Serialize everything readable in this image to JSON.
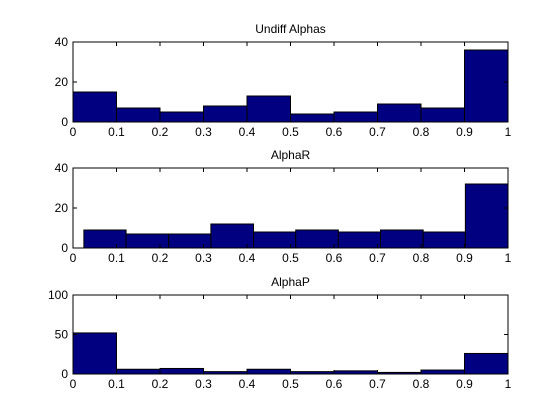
{
  "chart_data": [
    {
      "type": "bar",
      "title": "Undiff Alphas",
      "xlim": [
        0,
        1
      ],
      "ylim": [
        0,
        40
      ],
      "xticks": [
        "0",
        "0.1",
        "0.2",
        "0.3",
        "0.4",
        "0.5",
        "0.6",
        "0.7",
        "0.8",
        "0.9",
        "1"
      ],
      "yticks": [
        "0",
        "20",
        "40"
      ],
      "bar_color": "#000080",
      "bins": [
        {
          "start": 0.0,
          "end": 0.1,
          "value": 15
        },
        {
          "start": 0.1,
          "end": 0.2,
          "value": 7
        },
        {
          "start": 0.2,
          "end": 0.3,
          "value": 5
        },
        {
          "start": 0.3,
          "end": 0.4,
          "value": 8
        },
        {
          "start": 0.4,
          "end": 0.5,
          "value": 13
        },
        {
          "start": 0.5,
          "end": 0.6,
          "value": 4
        },
        {
          "start": 0.6,
          "end": 0.7,
          "value": 5
        },
        {
          "start": 0.7,
          "end": 0.8,
          "value": 9
        },
        {
          "start": 0.8,
          "end": 0.9,
          "value": 7
        },
        {
          "start": 0.9,
          "end": 1.0,
          "value": 36
        }
      ]
    },
    {
      "type": "bar",
      "title": "AlphaR",
      "xlim": [
        0,
        1
      ],
      "ylim": [
        0,
        40
      ],
      "xticks": [
        "0",
        "0.1",
        "0.2",
        "0.3",
        "0.4",
        "0.5",
        "0.6",
        "0.7",
        "0.8",
        "0.9",
        "1"
      ],
      "yticks": [
        "0",
        "20",
        "40"
      ],
      "bar_color": "#000080",
      "bins": [
        {
          "start": 0.025,
          "end": 0.122,
          "value": 9
        },
        {
          "start": 0.122,
          "end": 0.22,
          "value": 7
        },
        {
          "start": 0.22,
          "end": 0.317,
          "value": 7
        },
        {
          "start": 0.317,
          "end": 0.415,
          "value": 12
        },
        {
          "start": 0.415,
          "end": 0.512,
          "value": 8
        },
        {
          "start": 0.512,
          "end": 0.61,
          "value": 9
        },
        {
          "start": 0.61,
          "end": 0.707,
          "value": 8
        },
        {
          "start": 0.707,
          "end": 0.805,
          "value": 9
        },
        {
          "start": 0.805,
          "end": 0.902,
          "value": 8
        },
        {
          "start": 0.902,
          "end": 1.0,
          "value": 32
        }
      ]
    },
    {
      "type": "bar",
      "title": "AlphaP",
      "xlim": [
        0,
        1
      ],
      "ylim": [
        0,
        100
      ],
      "xticks": [
        "0",
        "0.1",
        "0.2",
        "0.3",
        "0.4",
        "0.5",
        "0.6",
        "0.7",
        "0.8",
        "0.9",
        "1"
      ],
      "yticks": [
        "0",
        "50",
        "100"
      ],
      "bar_color": "#000080",
      "bins": [
        {
          "start": 0.0,
          "end": 0.1,
          "value": 52
        },
        {
          "start": 0.1,
          "end": 0.2,
          "value": 6
        },
        {
          "start": 0.2,
          "end": 0.3,
          "value": 7
        },
        {
          "start": 0.3,
          "end": 0.4,
          "value": 3
        },
        {
          "start": 0.4,
          "end": 0.5,
          "value": 6
        },
        {
          "start": 0.5,
          "end": 0.6,
          "value": 3
        },
        {
          "start": 0.6,
          "end": 0.7,
          "value": 4
        },
        {
          "start": 0.7,
          "end": 0.8,
          "value": 2
        },
        {
          "start": 0.8,
          "end": 0.9,
          "value": 5
        },
        {
          "start": 0.9,
          "end": 1.0,
          "value": 26
        }
      ]
    }
  ]
}
